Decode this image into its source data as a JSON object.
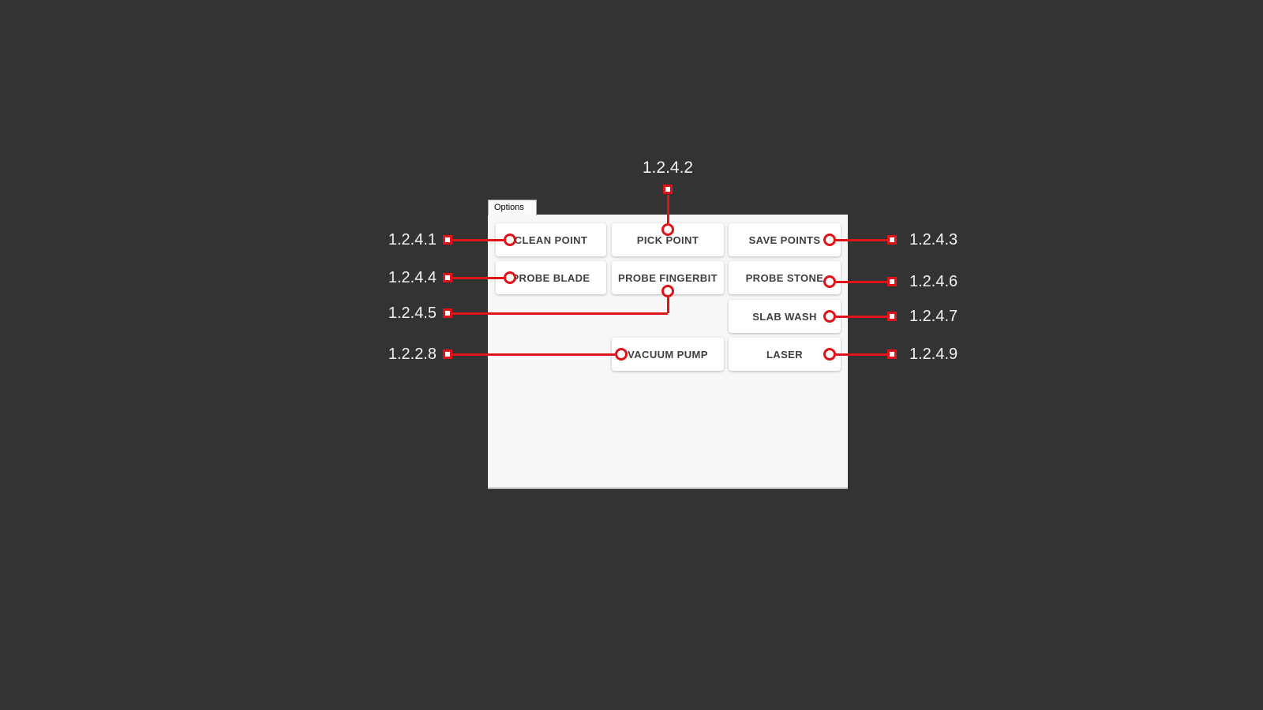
{
  "window": {
    "background_color": "#333333"
  },
  "options_panel": {
    "tab_label": "Options",
    "background_color": "#f7f7f7",
    "button_text_color": "#3d3f43",
    "buttons": [
      {
        "label": "CLEAN POINT"
      },
      {
        "label": "PICK POINT"
      },
      {
        "label": "SAVE POINTS"
      },
      {
        "label": "PROBE BLADE"
      },
      {
        "label": "PROBE FINGERBIT"
      },
      {
        "label": "PROBE STONE"
      },
      {
        "label": "SLAB WASH"
      },
      {
        "label": "VACUUM PUMP"
      },
      {
        "label": "LASER"
      }
    ]
  },
  "callouts": {
    "accent_color": "#e01319",
    "label_color": "#f1f1f1",
    "items": [
      {
        "label": "1.2.4.1",
        "target": "CLEAN POINT",
        "side": "left"
      },
      {
        "label": "1.2.4.2",
        "target": "PICK POINT",
        "side": "top"
      },
      {
        "label": "1.2.4.3",
        "target": "SAVE POINTS",
        "side": "right"
      },
      {
        "label": "1.2.4.4",
        "target": "PROBE BLADE",
        "side": "left"
      },
      {
        "label": "1.2.4.5",
        "target": "PROBE FINGERBIT",
        "side": "left"
      },
      {
        "label": "1.2.4.6",
        "target": "PROBE STONE",
        "side": "right"
      },
      {
        "label": "1.2.4.7",
        "target": "SLAB WASH",
        "side": "right"
      },
      {
        "label": "1.2.2.8",
        "target": "VACUUM PUMP",
        "side": "left"
      },
      {
        "label": "1.2.4.9",
        "target": "LASER",
        "side": "right"
      }
    ]
  }
}
